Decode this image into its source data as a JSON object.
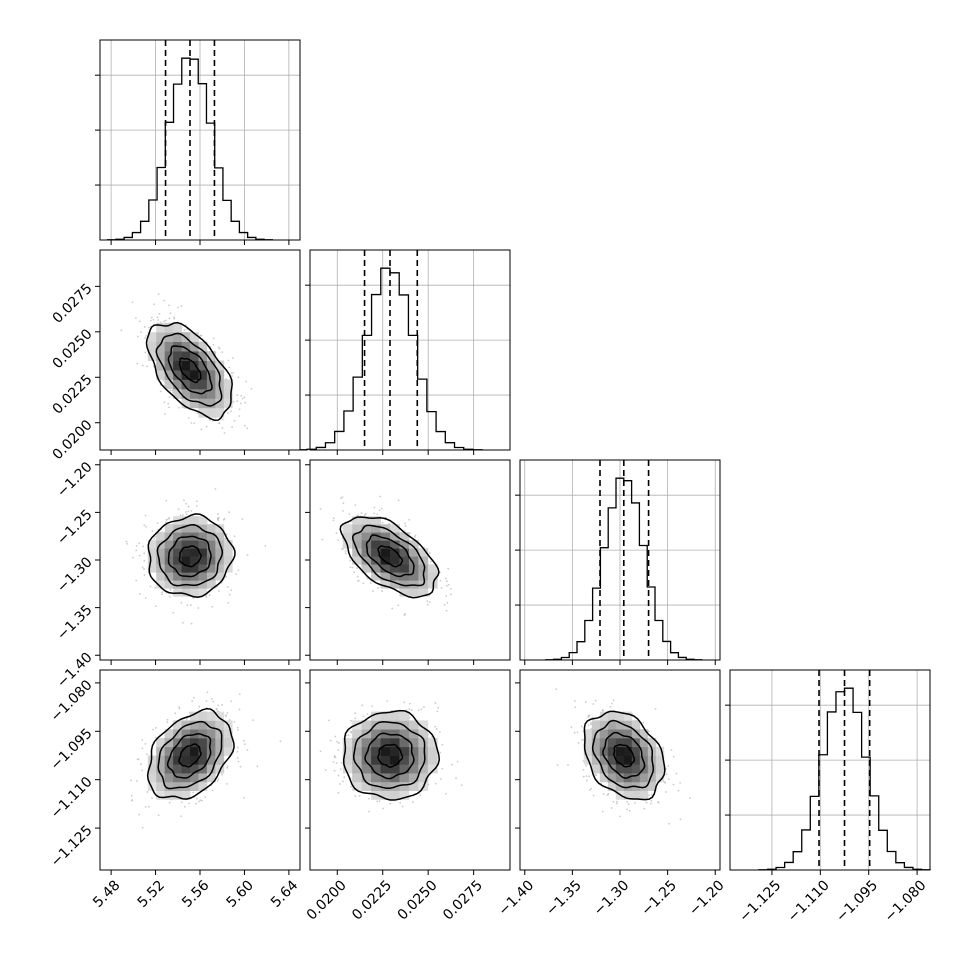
{
  "chart_data": {
    "type": "corner",
    "description_of_grid": "lower-triangle",
    "parameters": [
      {
        "range": [
          5.47,
          5.65
        ],
        "ticks": [
          "5.48",
          "5.52",
          "5.56",
          "5.60",
          "5.64"
        ],
        "tick_values": [
          5.48,
          5.52,
          5.56,
          5.6,
          5.64
        ],
        "mean": 5.551,
        "sd": 0.019,
        "quantiles": [
          5.529,
          5.551,
          5.573
        ]
      },
      {
        "range": [
          0.0185,
          0.0295
        ],
        "ticks": [
          "0.0200",
          "0.0225",
          "0.0250",
          "0.0275"
        ],
        "tick_values": [
          0.02,
          0.0225,
          0.025,
          0.0275
        ],
        "mean": 0.0229,
        "sd": 0.0013,
        "quantiles": [
          0.0215,
          0.0229,
          0.0244
        ]
      },
      {
        "range": [
          -1.405,
          -1.195
        ],
        "ticks": [
          "−1.40",
          "−1.35",
          "−1.30",
          "−1.25",
          "−1.20"
        ],
        "tick_values": [
          -1.4,
          -1.35,
          -1.3,
          -1.25,
          -1.2
        ],
        "mean": -1.296,
        "sd": 0.021,
        "quantiles": [
          -1.321,
          -1.296,
          -1.27
        ]
      },
      {
        "range": [
          -1.138,
          -1.076
        ],
        "ticks": [
          "−1.125",
          "−1.110",
          "−1.095",
          "−1.080"
        ],
        "tick_values": [
          -1.125,
          -1.11,
          -1.095,
          -1.08
        ],
        "mean": -1.1025,
        "sd": 0.0068,
        "quantiles": [
          -1.1104,
          -1.1025,
          -1.0947
        ]
      }
    ],
    "histogram": {
      "bins": 20,
      "diag_ticks_shown": 3,
      "show_grid": true
    },
    "pairs": [
      {
        "row": 1,
        "col": 0,
        "rho": -0.55
      },
      {
        "row": 2,
        "col": 0,
        "rho": 0.05
      },
      {
        "row": 2,
        "col": 1,
        "rho": -0.55
      },
      {
        "row": 3,
        "col": 0,
        "rho": 0.35
      },
      {
        "row": 3,
        "col": 1,
        "rho": 0.0
      },
      {
        "row": 3,
        "col": 2,
        "rho": -0.3
      }
    ],
    "contour_levels_sigma": [
      0.5,
      1.0,
      1.5,
      2.0
    ],
    "xlabel": "",
    "ylabel": "",
    "title": "",
    "colors": {
      "line": "#000000",
      "grid": "#b0b0b0",
      "points": "#b5b5b5"
    }
  }
}
